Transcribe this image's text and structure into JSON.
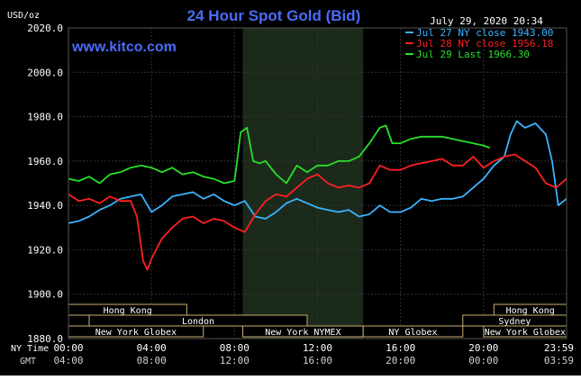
{
  "chart_data": {
    "type": "line",
    "title": "24 Hour Spot Gold (Bid)",
    "brand": "www.kitco.com",
    "timestamp": "July 29, 2020 20:34",
    "ylabel": "USD/oz",
    "ylim": [
      1880,
      2020
    ],
    "yticks": [
      "2020.0",
      "2000.0",
      "1980.0",
      "1960.0",
      "1940.0",
      "1920.0",
      "1900.0",
      "1880.0"
    ],
    "xlim": [
      0,
      24
    ],
    "xticks_ny": [
      "00:00",
      "04:00",
      "08:00",
      "12:00",
      "16:00",
      "20:00",
      "23:59"
    ],
    "xticks_gmt": [
      "04:00",
      "08:00",
      "12:00",
      "16:00",
      "20:00",
      "00:00",
      "03:59"
    ],
    "xaxis_row_labels": [
      "NY Time",
      "GMT"
    ],
    "grid": true,
    "legend_position": "top-right",
    "colors": {
      "background": "#000000",
      "grid": "#333333",
      "shaded_region": "#1c2a1c",
      "axis_text": "#ffffff",
      "title": "#4a6cf7",
      "brand": "#4a6cf7",
      "session_border": "#c8b070",
      "session_text": "#ffffff"
    },
    "shaded_region": [
      8.4,
      14.2
    ],
    "sessions": [
      {
        "label": "Hong Kong",
        "row": 0,
        "start": 0,
        "end": 5.7
      },
      {
        "label": "",
        "row": 1,
        "start": 0,
        "end": 1.0
      },
      {
        "label": "London",
        "row": 1,
        "start": 1.0,
        "end": 11.5
      },
      {
        "label": "New York Globex",
        "row": 2,
        "start": 0,
        "end": 6.5
      },
      {
        "label": "New York NYMEX",
        "row": 2,
        "start": 8.4,
        "end": 14.2
      },
      {
        "label": "NY Globex",
        "row": 2,
        "start": 14.2,
        "end": 19.0
      },
      {
        "label": "Hong Kong",
        "row": 0,
        "start": 20.5,
        "end": 24
      },
      {
        "label": "Sydney",
        "row": 1,
        "start": 19.0,
        "end": 24
      },
      {
        "label": "New York Globex",
        "row": 2,
        "start": 20.0,
        "end": 24
      }
    ],
    "series": [
      {
        "name": "Jul 27 NY close 1943.00",
        "color": "#3ab4ff",
        "x": [
          0,
          0.5,
          1,
          1.5,
          2,
          2.5,
          3,
          3.5,
          4,
          4.5,
          5,
          5.5,
          6,
          6.5,
          7,
          7.5,
          8,
          8.5,
          9,
          9.5,
          10,
          10.5,
          11,
          11.5,
          12,
          12.5,
          13,
          13.5,
          14,
          14.5,
          15,
          15.5,
          16,
          16.5,
          17,
          17.5,
          18,
          18.5,
          19,
          19.5,
          20,
          20.5,
          21,
          21.3,
          21.6,
          22,
          22.5,
          23,
          23.3,
          23.6,
          23.99
        ],
        "y": [
          1932,
          1933,
          1935,
          1938,
          1940,
          1943,
          1944,
          1945,
          1937,
          1940,
          1944,
          1945,
          1946,
          1943,
          1945,
          1942,
          1940,
          1942,
          1935,
          1934,
          1937,
          1941,
          1943,
          1941,
          1939,
          1938,
          1937,
          1938,
          1935,
          1936,
          1940,
          1937,
          1937,
          1939,
          1943,
          1942,
          1943,
          1943,
          1944,
          1948,
          1952,
          1958,
          1962,
          1972,
          1978,
          1975,
          1977,
          1972,
          1960,
          1940,
          1943
        ]
      },
      {
        "name": "Jul 28 NY close 1956.18",
        "color": "#ff2020",
        "x": [
          0,
          0.5,
          1,
          1.5,
          2,
          2.5,
          3,
          3.3,
          3.6,
          3.8,
          4,
          4.5,
          5,
          5.5,
          6,
          6.5,
          7,
          7.5,
          8,
          8.5,
          9,
          9.5,
          10,
          10.5,
          11,
          11.5,
          12,
          12.5,
          13,
          13.5,
          14,
          14.5,
          15,
          15.5,
          16,
          16.5,
          17,
          17.5,
          18,
          18.5,
          19,
          19.5,
          20,
          20.5,
          21,
          21.5,
          22,
          22.5,
          23,
          23.5,
          23.99
        ],
        "y": [
          1945,
          1942,
          1943,
          1941,
          1944,
          1942,
          1942,
          1935,
          1915,
          1911,
          1916,
          1925,
          1930,
          1934,
          1935,
          1932,
          1934,
          1933,
          1930,
          1928,
          1936,
          1942,
          1945,
          1944,
          1948,
          1952,
          1954,
          1950,
          1948,
          1949,
          1948,
          1950,
          1958,
          1956,
          1956,
          1958,
          1959,
          1960,
          1961,
          1958,
          1958,
          1962,
          1957,
          1960,
          1962,
          1963,
          1960,
          1957,
          1950,
          1948,
          1952
        ]
      },
      {
        "name": "Jul 29 Last 1966.30",
        "color": "#28e028",
        "x": [
          0,
          0.5,
          1,
          1.5,
          2,
          2.5,
          3,
          3.5,
          4,
          4.5,
          5,
          5.5,
          6,
          6.5,
          7,
          7.5,
          8,
          8.1,
          8.3,
          8.6,
          8.9,
          9.2,
          9.5,
          10,
          10.5,
          11,
          11.5,
          12,
          12.5,
          13,
          13.5,
          14,
          14.5,
          15,
          15.3,
          15.6,
          16,
          16.5,
          17,
          17.5,
          18,
          18.5,
          19,
          19.5,
          20,
          20.3
        ],
        "y": [
          1952,
          1951,
          1953,
          1950,
          1954,
          1955,
          1957,
          1958,
          1957,
          1955,
          1957,
          1954,
          1955,
          1953,
          1952,
          1950,
          1951,
          1958,
          1973,
          1975,
          1960,
          1959,
          1960,
          1954,
          1950,
          1958,
          1955,
          1958,
          1958,
          1960,
          1960,
          1962,
          1968,
          1975,
          1976,
          1968,
          1968,
          1970,
          1971,
          1971,
          1971,
          1970,
          1969,
          1968,
          1967,
          1966
        ]
      }
    ]
  }
}
